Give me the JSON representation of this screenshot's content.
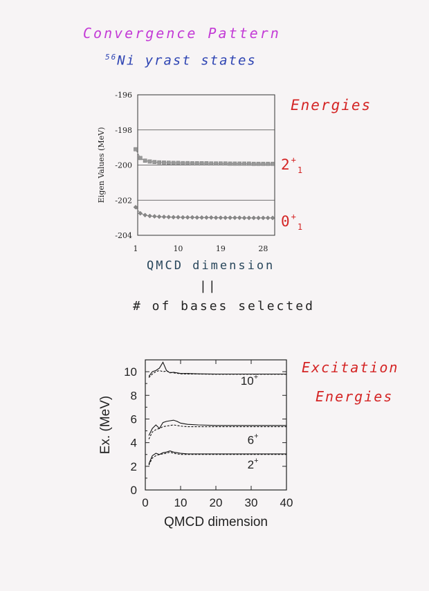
{
  "page": {
    "title_line1": "Convergence Pattern",
    "title_line2_prefix": "56",
    "title_line2_rest": "Ni yrast states",
    "energies_label": "Energies",
    "excitation_label_1": "Excitation",
    "excitation_label_2": "Energies",
    "state_2": {
      "base": "2",
      "sup": "+",
      "sub": "1"
    },
    "state_0": {
      "base": "0",
      "sup": "+",
      "sub": "1"
    },
    "handwritten_xlabel": "QMCD dimension",
    "equals_sign": "||",
    "bases_text": "# of bases selected",
    "colors": {
      "title1": "#c33bd6",
      "title2": "#2f45b3",
      "red": "#d42424",
      "series": "#8a8a8a"
    }
  },
  "chart_data": [
    {
      "type": "line",
      "ylabel": "Eigen Values (MeV)",
      "xlabel": "",
      "xlim": [
        1,
        30
      ],
      "ylim": [
        -204,
        -196
      ],
      "xticks": [
        1,
        10,
        19,
        28
      ],
      "yticks": [
        -196,
        -198,
        -200,
        -202,
        -204
      ],
      "grid": "horizontal",
      "series": [
        {
          "name": "2+1",
          "marker": "square",
          "x": [
            1,
            2,
            3,
            4,
            5,
            6,
            7,
            8,
            9,
            10,
            11,
            12,
            13,
            14,
            15,
            16,
            17,
            18,
            19,
            20,
            21,
            22,
            23,
            24,
            25,
            26,
            27,
            28,
            29,
            30
          ],
          "y": [
            -199.1,
            -199.6,
            -199.75,
            -199.8,
            -199.83,
            -199.85,
            -199.86,
            -199.87,
            -199.88,
            -199.88,
            -199.89,
            -199.89,
            -199.9,
            -199.9,
            -199.9,
            -199.9,
            -199.91,
            -199.91,
            -199.91,
            -199.91,
            -199.92,
            -199.92,
            -199.92,
            -199.92,
            -199.92,
            -199.93,
            -199.93,
            -199.93,
            -199.93,
            -199.93
          ]
        },
        {
          "name": "0+1",
          "marker": "diamond",
          "x": [
            1,
            2,
            3,
            4,
            5,
            6,
            7,
            8,
            9,
            10,
            11,
            12,
            13,
            14,
            15,
            16,
            17,
            18,
            19,
            20,
            21,
            22,
            23,
            24,
            25,
            26,
            27,
            28,
            29,
            30
          ],
          "y": [
            -202.4,
            -202.75,
            -202.85,
            -202.9,
            -202.92,
            -202.94,
            -202.95,
            -202.96,
            -202.97,
            -202.97,
            -202.98,
            -202.98,
            -202.98,
            -202.99,
            -202.99,
            -202.99,
            -202.99,
            -203.0,
            -203.0,
            -203.0,
            -203.0,
            -203.0,
            -203.0,
            -203.01,
            -203.01,
            -203.01,
            -203.01,
            -203.01,
            -203.01,
            -203.01
          ]
        }
      ]
    },
    {
      "type": "line",
      "xlabel": "QMCD dimension",
      "ylabel": "Ex. (MeV)",
      "xlim": [
        0,
        40
      ],
      "ylim": [
        0,
        11
      ],
      "xticks": [
        0,
        10,
        20,
        30,
        40
      ],
      "yticks": [
        0,
        2,
        4,
        6,
        8,
        10
      ],
      "annotations": [
        {
          "text": "10",
          "sup": "+",
          "x": 29.5,
          "y": 8.9
        },
        {
          "text": "6",
          "sup": "+",
          "x": 30.5,
          "y": 3.9
        },
        {
          "text": "2",
          "sup": "+",
          "x": 30.5,
          "y": 1.8
        }
      ],
      "series": [
        {
          "style": "solid",
          "x": [
            1,
            2,
            3,
            4,
            5,
            6,
            7,
            8,
            10,
            12,
            15,
            20,
            25,
            30,
            35,
            40
          ],
          "y": [
            9.6,
            10.0,
            10.1,
            10.3,
            10.8,
            10.1,
            9.9,
            9.95,
            9.85,
            9.85,
            9.82,
            9.8,
            9.8,
            9.8,
            9.8,
            9.8
          ]
        },
        {
          "style": "dashed",
          "x": [
            1,
            2,
            3,
            4,
            5,
            6,
            7,
            8,
            10,
            12,
            15,
            20,
            25,
            30,
            35,
            40
          ],
          "y": [
            9.5,
            9.8,
            10.0,
            10.1,
            10.0,
            10.05,
            9.95,
            9.9,
            9.82,
            9.8,
            9.8,
            9.78,
            9.78,
            9.78,
            9.78,
            9.78
          ]
        },
        {
          "style": "solid",
          "x": [
            1,
            2,
            3,
            4,
            5,
            6,
            7,
            8,
            9,
            10,
            12,
            15,
            20,
            25,
            30,
            35,
            40
          ],
          "y": [
            4.6,
            5.2,
            5.5,
            5.2,
            5.7,
            5.8,
            5.85,
            5.9,
            5.8,
            5.65,
            5.55,
            5.5,
            5.45,
            5.45,
            5.45,
            5.45,
            5.45
          ]
        },
        {
          "style": "dashed",
          "x": [
            1,
            2,
            3,
            4,
            5,
            6,
            7,
            8,
            9,
            10,
            12,
            15,
            20,
            25,
            30,
            35,
            40
          ],
          "y": [
            4.3,
            4.9,
            5.1,
            5.2,
            5.35,
            5.4,
            5.45,
            5.5,
            5.45,
            5.4,
            5.35,
            5.35,
            5.35,
            5.35,
            5.35,
            5.35,
            5.35
          ]
        },
        {
          "style": "solid",
          "x": [
            1,
            2,
            3,
            4,
            5,
            6,
            7,
            8,
            9,
            10,
            12,
            15,
            20,
            25,
            30,
            35,
            40
          ],
          "y": [
            2.2,
            2.9,
            3.1,
            3.0,
            3.15,
            3.2,
            3.3,
            3.2,
            3.15,
            3.1,
            3.05,
            3.05,
            3.05,
            3.05,
            3.05,
            3.05,
            3.05
          ]
        },
        {
          "style": "dashed",
          "x": [
            1,
            2,
            3,
            4,
            5,
            6,
            7,
            8,
            9,
            10,
            12,
            15,
            20,
            25,
            30,
            35,
            40
          ],
          "y": [
            2.1,
            2.7,
            2.9,
            3.0,
            3.05,
            3.1,
            3.2,
            3.1,
            3.05,
            3.0,
            3.0,
            3.0,
            3.0,
            3.0,
            3.0,
            3.0,
            3.0
          ]
        }
      ]
    }
  ]
}
